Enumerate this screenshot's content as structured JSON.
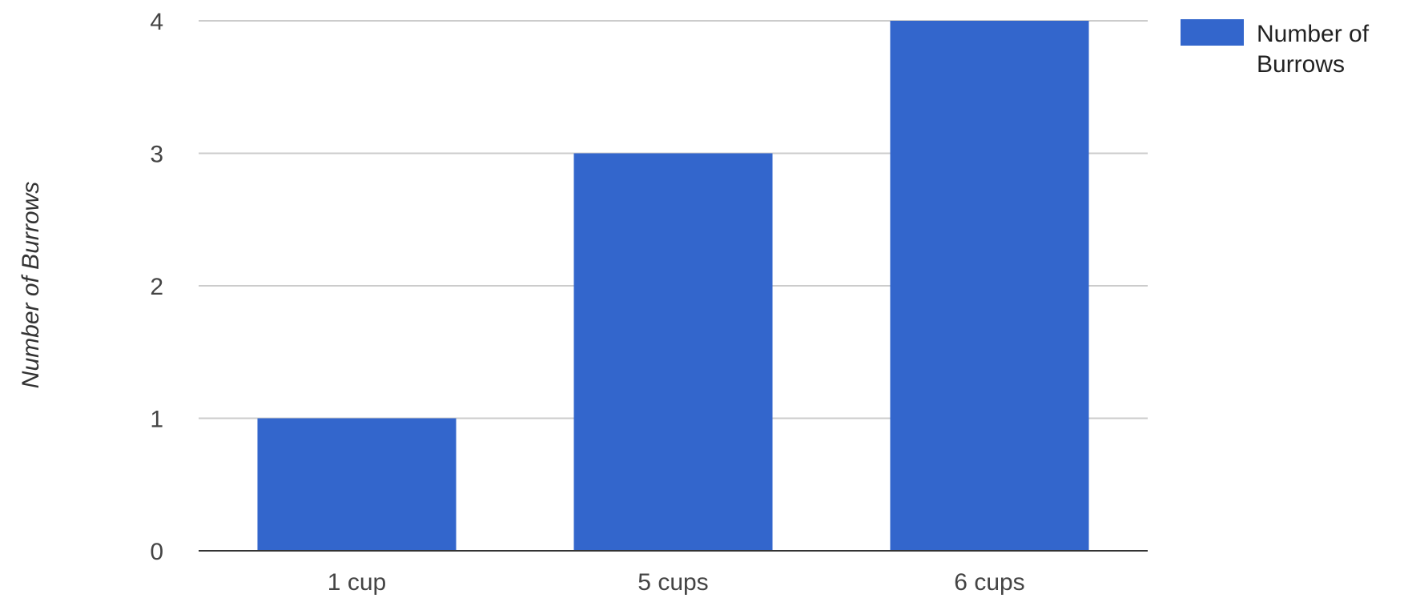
{
  "chart_data": {
    "type": "bar",
    "categories": [
      "1 cup",
      "5 cups",
      "6 cups"
    ],
    "series": [
      {
        "name": "Number of Burrows",
        "legend_lines": [
          "Number of",
          "Burrows"
        ],
        "values": [
          1,
          3,
          4
        ],
        "color": "#3366cc"
      }
    ],
    "xlabel": "",
    "ylabel": "Number of Burrows",
    "ylim": [
      0,
      4
    ],
    "yticks": [
      0,
      1,
      2,
      3,
      4
    ],
    "grid": true,
    "legend_position": "right"
  }
}
